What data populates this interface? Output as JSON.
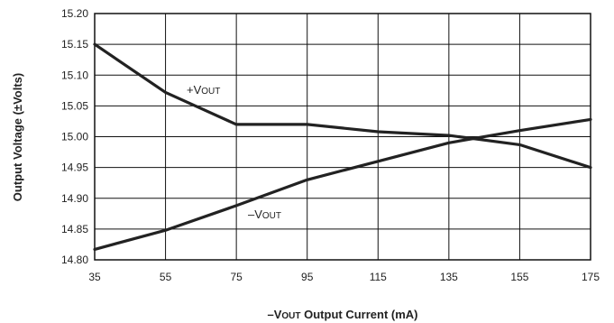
{
  "chart_data": {
    "type": "line",
    "xlabel": "–VOUT Output Current (mA)",
    "xlabel_parts": {
      "dash": "–",
      "v": "V",
      "sub": "OUT",
      "rest": " Output Current (mA)"
    },
    "ylabel": "Output Voltage (±Volts)",
    "xlim": [
      35,
      175
    ],
    "ylim": [
      14.8,
      15.2
    ],
    "xticks": [
      35,
      55,
      75,
      95,
      115,
      135,
      155,
      175
    ],
    "yticks": [
      14.8,
      14.85,
      14.9,
      14.95,
      15.0,
      15.05,
      15.1,
      15.15,
      15.2
    ],
    "xtick_labels": [
      "35",
      "55",
      "75",
      "95",
      "115",
      "135",
      "155",
      "175"
    ],
    "ytick_labels": [
      "14.80",
      "14.85",
      "14.90",
      "14.95",
      "15.00",
      "15.05",
      "15.10",
      "15.15",
      "15.20"
    ],
    "grid": true,
    "series": [
      {
        "name": "+VOUT",
        "label_parts": {
          "sign": "+",
          "v": "V",
          "sub": "OUT"
        },
        "x": [
          35,
          55,
          75,
          95,
          115,
          135,
          155,
          175
        ],
        "y": [
          15.15,
          15.072,
          15.02,
          15.02,
          15.008,
          15.002,
          14.987,
          14.95
        ]
      },
      {
        "name": "–VOUT",
        "label_parts": {
          "sign": "–",
          "v": "V",
          "sub": "OUT"
        },
        "x": [
          35,
          55,
          75,
          95,
          115,
          135,
          155,
          175
        ],
        "y": [
          14.817,
          14.848,
          14.888,
          14.93,
          14.96,
          14.99,
          15.01,
          15.028
        ]
      }
    ]
  }
}
